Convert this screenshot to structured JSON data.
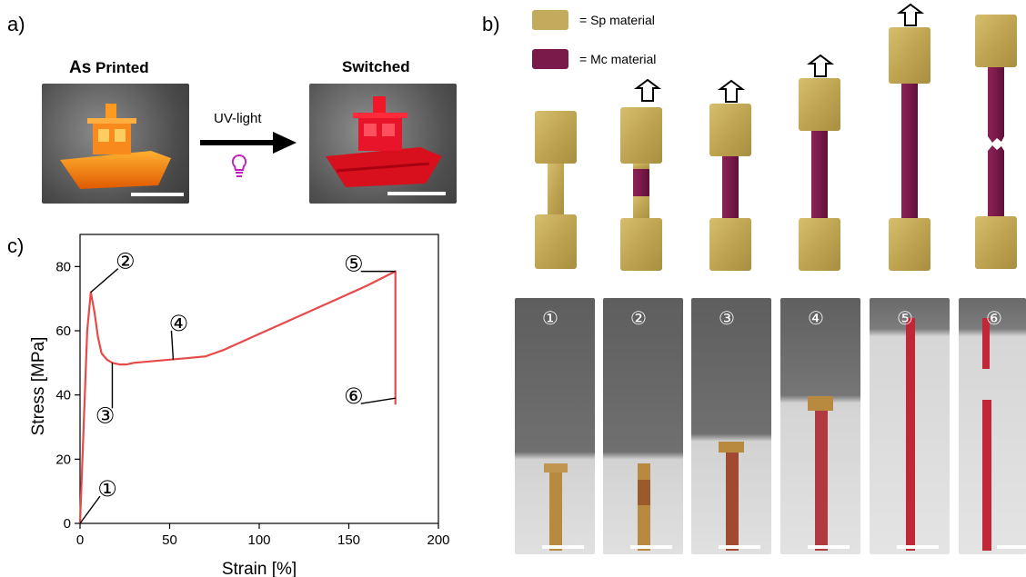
{
  "panels": {
    "a": {
      "letter": "a)",
      "left_title_bold": "As",
      "left_title_rest": " Printed",
      "right_title": "Switched",
      "arrow_label": "UV-light",
      "colors": {
        "printed_boat": "#ff7a10",
        "switched_boat": "#e0102a",
        "bulb": "#c020c0"
      }
    },
    "b": {
      "letter": "b)",
      "legend": [
        {
          "label": "= Sp material",
          "color": "#c3aa5c"
        },
        {
          "label": "= Mc material",
          "color": "#7a1a4a"
        }
      ],
      "photo_labels": [
        "①",
        "②",
        "③",
        "④",
        "⑤",
        "⑥"
      ]
    },
    "c": {
      "letter": "c)"
    }
  },
  "chart_data": {
    "type": "line",
    "title": "",
    "xlabel": "Strain [%]",
    "ylabel": "Stress [MPa]",
    "xlim": [
      0,
      200
    ],
    "ylim": [
      0,
      90
    ],
    "xticks": [
      0,
      50,
      100,
      150,
      200
    ],
    "yticks": [
      0,
      20,
      40,
      60,
      80
    ],
    "grid": false,
    "color": "#e84a4a",
    "series": [
      {
        "x": [
          0,
          2,
          4,
          6,
          8,
          10,
          12,
          15,
          18,
          22,
          26,
          30,
          40,
          50,
          60,
          70,
          80,
          100,
          120,
          140,
          160,
          176,
          176
        ],
        "y": [
          0,
          30,
          60,
          72,
          66,
          58,
          53,
          51,
          50,
          49.5,
          49.5,
          50,
          50.5,
          51,
          51.5,
          52,
          54,
          59,
          64,
          69,
          74,
          78.5,
          37
        ]
      }
    ],
    "annotations": [
      {
        "label": "①",
        "x": 0,
        "y": 0
      },
      {
        "label": "②",
        "x": 6,
        "y": 72
      },
      {
        "label": "③",
        "x": 18,
        "y": 50
      },
      {
        "label": "④",
        "x": 52,
        "y": 51
      },
      {
        "label": "⑤",
        "x": 176,
        "y": 78.5
      },
      {
        "label": "⑥",
        "x": 176,
        "y": 39
      }
    ]
  }
}
